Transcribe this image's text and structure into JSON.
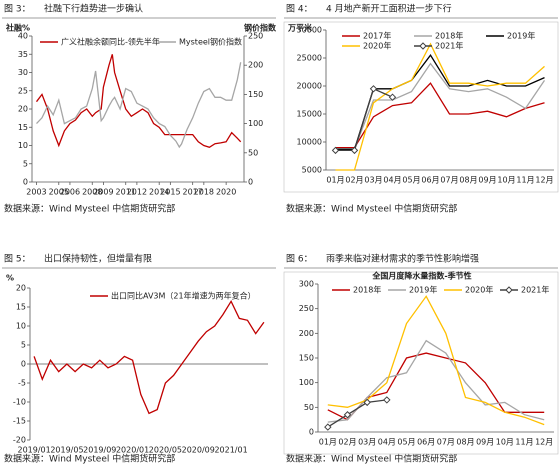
{
  "chart_data": [
    {
      "type": "line",
      "caption_label": "图 3：",
      "caption": "社融下行趋势进一步确认",
      "source": "数据来源：Wind Mysteel 中信期货研究部",
      "ylabel": "社融%",
      "y2label": "钢价指数",
      "x": [
        2003,
        2003.5,
        2004,
        2004.5,
        2005,
        2005.5,
        2006,
        2006.5,
        2007,
        2007.5,
        2008,
        2008.3,
        2008.8,
        2009,
        2009.5,
        2009.8,
        2010,
        2010.5,
        2011,
        2011.5,
        2012,
        2012.5,
        2013,
        2013.5,
        2014,
        2014.5,
        2015,
        2015.5,
        2015.8,
        2016,
        2016.5,
        2017,
        2017.5,
        2018,
        2018.5,
        2019,
        2019.5,
        2020,
        2020.5,
        2021,
        2021.3
      ],
      "xlim": [
        2002.6,
        2021.6
      ],
      "xticks": [
        2003,
        2005,
        2006,
        2008,
        2009,
        2011,
        2012,
        2014,
        2015,
        2017,
        2018,
        2020
      ],
      "ylim": [
        0,
        40
      ],
      "yticks": [
        0,
        5,
        10,
        15,
        20,
        25,
        30,
        35,
        40
      ],
      "y2lim": [
        0,
        250
      ],
      "y2ticks": [
        0,
        50,
        100,
        150,
        200,
        250
      ],
      "series": [
        {
          "name": "广义社融余额同比-领先半年",
          "color": "#c00000",
          "values": [
            22,
            24,
            20,
            14,
            10,
            14,
            16,
            17,
            19,
            20,
            18,
            19,
            20,
            26,
            32,
            35,
            30,
            25,
            20,
            18,
            19,
            20,
            19,
            16,
            15,
            13,
            13,
            13,
            13,
            13,
            13,
            13,
            11,
            10,
            9.5,
            10.5,
            10.7,
            11,
            13.5,
            12,
            11
          ]
        },
        {
          "name": "Mysteel钢价指数",
          "color": "#a6a6a6",
          "axis": "y2",
          "values": [
            100,
            110,
            130,
            115,
            140,
            100,
            105,
            110,
            125,
            130,
            160,
            190,
            105,
            110,
            130,
            140,
            145,
            125,
            160,
            155,
            135,
            130,
            125,
            110,
            100,
            95,
            80,
            70,
            60,
            65,
            90,
            110,
            135,
            155,
            160,
            145,
            145,
            140,
            140,
            175,
            205
          ]
        }
      ]
    },
    {
      "type": "line",
      "caption_label": "图 4：",
      "caption": "4 月地产新开工面积进一步下行",
      "source": "数据来源：Wind Mysteel 中信期货研究部",
      "ylabel": "万平米",
      "categories": [
        "01月",
        "02月",
        "03月",
        "04月",
        "05月",
        "06月",
        "07月",
        "08月",
        "09月",
        "10月",
        "11月",
        "12月"
      ],
      "ylim": [
        5000,
        30000
      ],
      "yticks": [
        5000,
        10000,
        15000,
        20000,
        25000,
        30000
      ],
      "series": [
        {
          "name": "2017年",
          "color": "#c00000",
          "values": [
            9000,
            9000,
            14500,
            16500,
            17000,
            20500,
            15000,
            15000,
            15500,
            14500,
            16000,
            17000
          ]
        },
        {
          "name": "2018年",
          "color": "#a6a6a6",
          "values": [
            8800,
            8800,
            17500,
            17500,
            19000,
            24000,
            19500,
            19000,
            19500,
            18000,
            16000,
            21000
          ]
        },
        {
          "name": "2019年",
          "color": "#000000",
          "values": [
            8700,
            8700,
            19500,
            19500,
            21000,
            25500,
            20000,
            20000,
            21000,
            20000,
            20000,
            21500
          ]
        },
        {
          "name": "2020年",
          "color": "#ffc000",
          "values": [
            5000,
            5000,
            17000,
            19500,
            21000,
            27500,
            20500,
            20500,
            20000,
            20500,
            20500,
            23500
          ]
        },
        {
          "name": "2021年",
          "color": "#404040",
          "marker": "diamond",
          "values": [
            8500,
            8500,
            19500,
            18000,
            null,
            null,
            null,
            null,
            null,
            null,
            null,
            null
          ]
        }
      ]
    },
    {
      "type": "line",
      "caption_label": "图 5：",
      "caption": "出口保持韧性，但增量有限",
      "source": "数据来源：Wind Mysteel 中信期货研究部",
      "ylabel": "%",
      "categories": [
        "2019/01",
        null,
        null,
        null,
        "2019/05",
        null,
        null,
        null,
        "2019/09",
        null,
        null,
        null,
        "2020/01",
        null,
        null,
        null,
        "2020/05",
        null,
        null,
        null,
        "2020/09",
        null,
        null,
        null,
        "2021/01",
        null,
        null,
        null,
        null
      ],
      "ylim": [
        -20,
        20
      ],
      "yticks": [
        -20,
        -15,
        -10,
        -5,
        0,
        5,
        10,
        15,
        20
      ],
      "series": [
        {
          "name": "出口同比AV3M（21年增速为两年复合）",
          "color": "#c00000",
          "values": [
            2,
            -4,
            1,
            -2,
            0,
            -2,
            0,
            -1,
            1,
            -1,
            0,
            2,
            1,
            -8,
            -13,
            -12,
            -5,
            -3,
            0,
            3,
            6,
            8.5,
            10,
            13,
            16.5,
            12,
            11.5,
            8,
            11
          ]
        }
      ]
    },
    {
      "type": "line",
      "caption_label": "图 6：",
      "caption": "雨季来临对建材需求的季节性影响增强",
      "source": "数据来源：Wind Mysteel 中信期货研究部",
      "title": "全国月度降水量指数-季节性",
      "categories": [
        "01月",
        "02月",
        "03月",
        "04月",
        "05月",
        "06月",
        "07月",
        "08月",
        "09月",
        "10月",
        "11月",
        "12月"
      ],
      "ylim": [
        0,
        300
      ],
      "yticks": [
        0,
        50,
        100,
        150,
        200,
        250,
        300
      ],
      "series": [
        {
          "name": "2018年",
          "color": "#c00000",
          "values": [
            45,
            25,
            70,
            80,
            150,
            160,
            150,
            140,
            100,
            40,
            40,
            40
          ]
        },
        {
          "name": "2019年",
          "color": "#a6a6a6",
          "values": [
            20,
            25,
            70,
            110,
            120,
            185,
            160,
            100,
            55,
            60,
            35,
            25
          ]
        },
        {
          "name": "2020年",
          "color": "#ffc000",
          "values": [
            55,
            50,
            65,
            100,
            220,
            275,
            200,
            70,
            60,
            40,
            30,
            15
          ]
        },
        {
          "name": "2021年",
          "color": "#404040",
          "marker": "diamond",
          "values": [
            10,
            35,
            60,
            65,
            null,
            null,
            null,
            null,
            null,
            null,
            null,
            null
          ]
        }
      ]
    }
  ]
}
